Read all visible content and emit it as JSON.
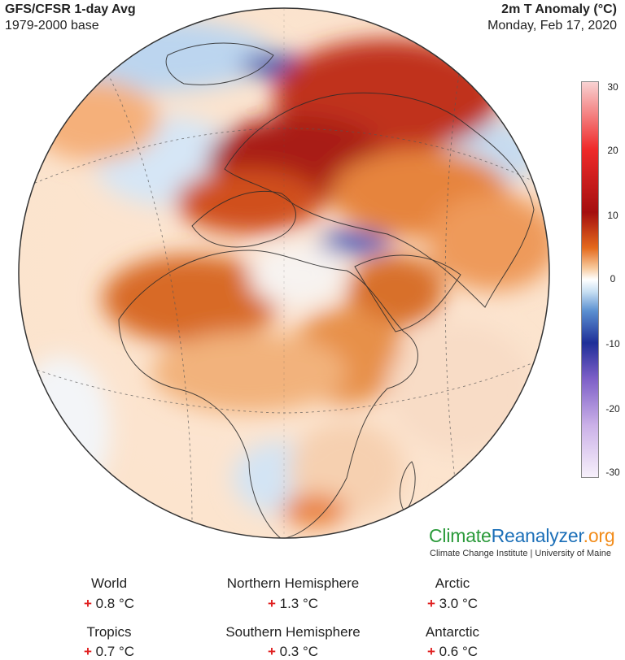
{
  "header": {
    "title_left": "GFS/CFSR 1-day Avg",
    "subtitle_left": "1979-2000 base",
    "title_right": "2m T Anomaly (°C)",
    "date_right": "Monday, Feb 17, 2020"
  },
  "colorbar": {
    "ticks": [
      "30",
      "20",
      "10",
      "0",
      "-10",
      "-20",
      "-30"
    ]
  },
  "brand": {
    "part1": "Climate",
    "part2": "Reanalyzer",
    "part3": ".org",
    "institution": "Climate Change Institute | University of Maine"
  },
  "stats": [
    {
      "name": "World",
      "sign": "+",
      "value": "0.8 °C"
    },
    {
      "name": "Northern Hemisphere",
      "sign": "+",
      "value": "1.3 °C"
    },
    {
      "name": "Arctic",
      "sign": "+",
      "value": "3.0 °C"
    },
    {
      "name": "Tropics",
      "sign": "+",
      "value": "0.7 °C"
    },
    {
      "name": "Southern Hemisphere",
      "sign": "+",
      "value": "0.3 °C"
    },
    {
      "name": "Antarctic",
      "sign": "+",
      "value": "0.6 °C"
    }
  ],
  "colors": {
    "warm_strong": "#a40f0f",
    "warm": "#e46a1d",
    "cool": "#5a8fd0",
    "cold": "#1f2f98",
    "neutral": "#ffffff"
  }
}
